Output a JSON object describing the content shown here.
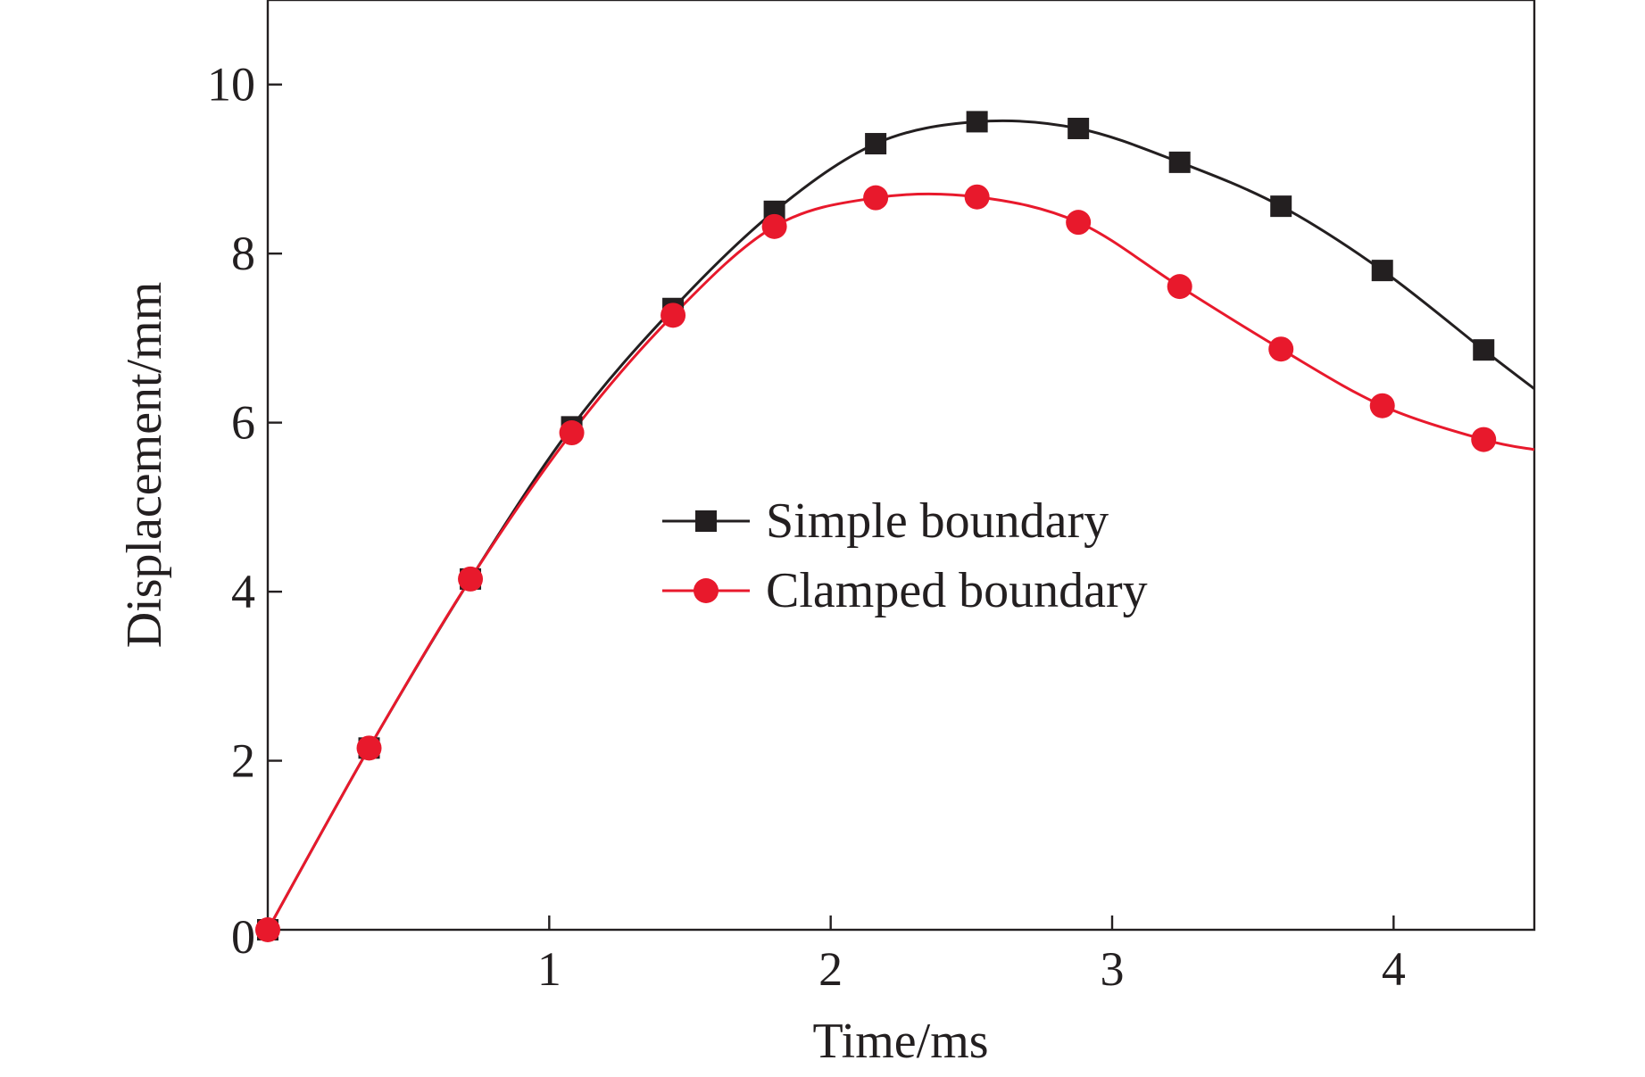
{
  "chart_data": {
    "type": "line",
    "xlabel": "Time/ms",
    "ylabel": "Displacement/mm",
    "xlim": [
      0,
      4.5
    ],
    "ylim": [
      0,
      11
    ],
    "xticks": [
      1,
      2,
      3,
      4
    ],
    "yticks": [
      0,
      2,
      4,
      6,
      8,
      10
    ],
    "grid": false,
    "legend_position": "center",
    "series": [
      {
        "name": "Simple boundary",
        "color": "#231f20",
        "marker": "square",
        "x": [
          0.0,
          0.36,
          0.72,
          1.08,
          1.44,
          1.8,
          2.16,
          2.52,
          2.88,
          3.24,
          3.6,
          3.96,
          4.32
        ],
        "y": [
          0.0,
          2.15,
          4.15,
          5.95,
          7.35,
          8.5,
          9.3,
          9.56,
          9.48,
          9.08,
          8.56,
          7.8,
          6.86
        ],
        "line_end": {
          "x": 4.5,
          "y": 6.4
        }
      },
      {
        "name": "Clamped boundary",
        "color": "#e8192c",
        "marker": "circle",
        "x": [
          0.0,
          0.36,
          0.72,
          1.08,
          1.44,
          1.8,
          2.16,
          2.52,
          2.88,
          3.24,
          3.6,
          3.96,
          4.32
        ],
        "y": [
          0.0,
          2.15,
          4.15,
          5.88,
          7.27,
          8.32,
          8.66,
          8.67,
          8.37,
          7.61,
          6.87,
          6.2,
          5.8
        ],
        "line_end": {
          "x": 4.5,
          "y": 5.68
        }
      }
    ]
  }
}
